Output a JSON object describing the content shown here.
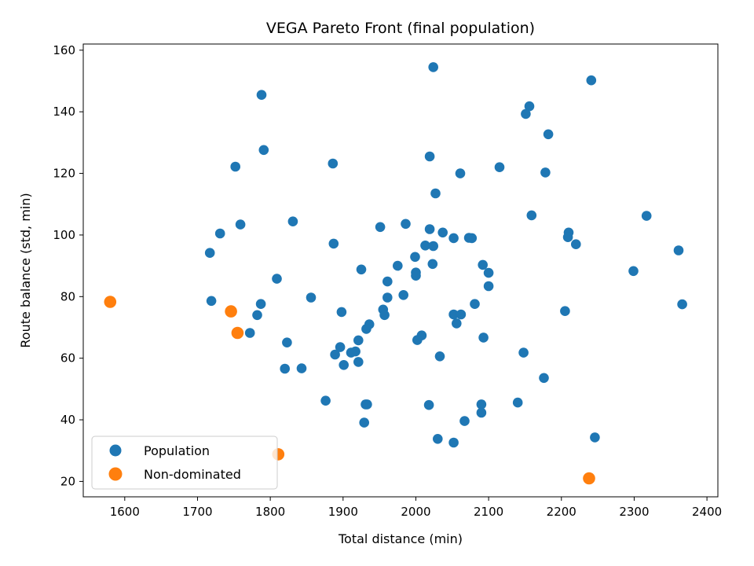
{
  "chart_data": {
    "type": "scatter",
    "title": "VEGA Pareto Front (final population)",
    "xlabel": "Total distance (min)",
    "ylabel": "Route balance (std, min)",
    "xlim": [
      1543,
      2415
    ],
    "ylim": [
      15,
      162
    ],
    "xticks": [
      1600,
      1700,
      1800,
      1900,
      2000,
      2100,
      2200,
      2300,
      2400
    ],
    "yticks": [
      20,
      40,
      60,
      80,
      100,
      120,
      140,
      160
    ],
    "grid": false,
    "legend_placement": "lower-left",
    "series": [
      {
        "name": "Population",
        "color": "#1f77b4",
        "points": [
          [
            2024,
            154.5
          ],
          [
            2241,
            150.2
          ],
          [
            1788,
            145.5
          ],
          [
            2156,
            141.8
          ],
          [
            2151,
            139.3
          ],
          [
            2182,
            132.7
          ],
          [
            1791,
            127.6
          ],
          [
            2019,
            125.5
          ],
          [
            1886,
            123.2
          ],
          [
            1752,
            122.2
          ],
          [
            2115,
            122.0
          ],
          [
            2061,
            120.0
          ],
          [
            2178,
            120.3
          ],
          [
            2027,
            113.5
          ],
          [
            2159,
            106.4
          ],
          [
            2317,
            106.2
          ],
          [
            1831,
            104.4
          ],
          [
            1759,
            103.4
          ],
          [
            1986,
            103.6
          ],
          [
            1951,
            102.6
          ],
          [
            2019,
            101.9
          ],
          [
            2037,
            100.8
          ],
          [
            1731,
            100.5
          ],
          [
            2210,
            100.8
          ],
          [
            2209,
            99.3
          ],
          [
            2052,
            99.0
          ],
          [
            2073,
            99.1
          ],
          [
            2077,
            99.0
          ],
          [
            1887,
            97.2
          ],
          [
            2220,
            97.0
          ],
          [
            2013,
            96.6
          ],
          [
            2024,
            96.4
          ],
          [
            2361,
            95.0
          ],
          [
            1717,
            94.2
          ],
          [
            1999,
            92.9
          ],
          [
            2023,
            90.6
          ],
          [
            2092,
            90.3
          ],
          [
            1975,
            90.0
          ],
          [
            1925,
            88.8
          ],
          [
            2000,
            87.8
          ],
          [
            2100,
            87.7
          ],
          [
            2000,
            86.8
          ],
          [
            2299,
            88.3
          ],
          [
            1809,
            85.8
          ],
          [
            1961,
            84.9
          ],
          [
            2100,
            83.4
          ],
          [
            1983,
            80.5
          ],
          [
            1961,
            79.7
          ],
          [
            1856,
            79.7
          ],
          [
            1719,
            78.6
          ],
          [
            1787,
            77.6
          ],
          [
            2081,
            77.6
          ],
          [
            2366,
            77.5
          ],
          [
            1955,
            75.8
          ],
          [
            1898,
            75.0
          ],
          [
            2205,
            75.3
          ],
          [
            1782,
            74.0
          ],
          [
            2052,
            74.2
          ],
          [
            2062,
            74.2
          ],
          [
            1957,
            74.0
          ],
          [
            2056,
            71.3
          ],
          [
            1936,
            71.0
          ],
          [
            1932,
            69.5
          ],
          [
            1772,
            68.2
          ],
          [
            2008,
            67.4
          ],
          [
            2093,
            66.7
          ],
          [
            2002,
            65.9
          ],
          [
            1921,
            65.8
          ],
          [
            1823,
            65.1
          ],
          [
            1896,
            63.6
          ],
          [
            1917,
            62.2
          ],
          [
            1911,
            61.8
          ],
          [
            1889,
            61.2
          ],
          [
            2148,
            61.8
          ],
          [
            2033,
            60.6
          ],
          [
            1921,
            58.8
          ],
          [
            1901,
            57.8
          ],
          [
            1820,
            56.6
          ],
          [
            1843,
            56.7
          ],
          [
            2176,
            53.6
          ],
          [
            1876,
            46.2
          ],
          [
            1931,
            45.0
          ],
          [
            1933,
            45.0
          ],
          [
            2090,
            45.0
          ],
          [
            2140,
            45.6
          ],
          [
            2018,
            44.8
          ],
          [
            2090,
            42.3
          ],
          [
            2067,
            39.6
          ],
          [
            1929,
            39.1
          ],
          [
            2030,
            33.8
          ],
          [
            2246,
            34.3
          ],
          [
            2052,
            32.6
          ]
        ]
      },
      {
        "name": "Non-dominated",
        "color": "#ff7f0e",
        "points": [
          [
            1580,
            78.3
          ],
          [
            1746,
            75.2
          ],
          [
            1755,
            68.2
          ],
          [
            1811,
            28.8
          ],
          [
            2238,
            21.0
          ]
        ]
      }
    ]
  }
}
